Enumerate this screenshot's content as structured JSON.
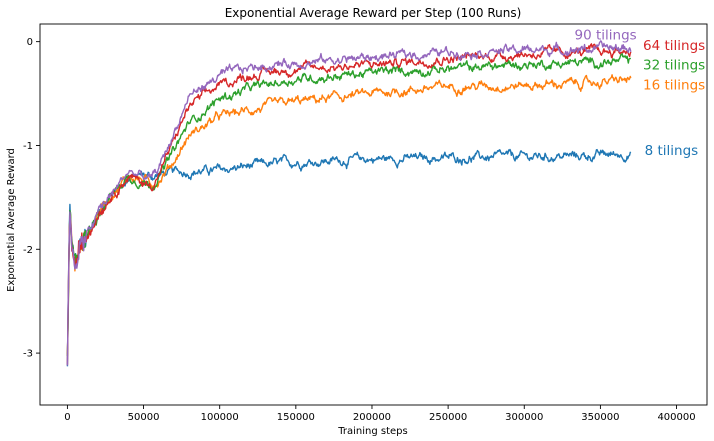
{
  "chart_data": {
    "type": "line",
    "title": "Exponential Average Reward per Step (100 Runs)",
    "xlabel": "Training steps",
    "ylabel": "Exponential Average Reward",
    "xlim": [
      -18000,
      420000
    ],
    "ylim": [
      -3.5,
      0.17
    ],
    "xticks": [
      0,
      50000,
      100000,
      150000,
      200000,
      250000,
      300000,
      350000,
      400000
    ],
    "yticks": [
      0,
      -1,
      -2,
      -3
    ],
    "grid": false,
    "legend": "none",
    "colors": {
      "8 tilings": "#1f77b4",
      "16 tilings": "#ff7f0e",
      "32 tilings": "#2ca02c",
      "64 tilings": "#d62728",
      "90 tilings": "#9467bd"
    },
    "series": [
      {
        "name": "8 tilings",
        "color": "#1f77b4",
        "x": [
          0,
          1500,
          3000,
          5000,
          8000,
          12000,
          20000,
          30000,
          40000,
          50000,
          55000,
          60000,
          70000,
          80000,
          100000,
          120000,
          150000,
          200000,
          250000,
          300000,
          340000,
          370000
        ],
        "values": [
          -3.1,
          -1.6,
          -2.0,
          -2.15,
          -2.0,
          -1.9,
          -1.65,
          -1.45,
          -1.32,
          -1.28,
          -1.3,
          -1.28,
          -1.26,
          -1.25,
          -1.24,
          -1.2,
          -1.16,
          -1.13,
          -1.12,
          -1.11,
          -1.1,
          -1.08
        ]
      },
      {
        "name": "16 tilings",
        "color": "#ff7f0e",
        "x": [
          0,
          1500,
          3000,
          5000,
          8000,
          12000,
          20000,
          30000,
          40000,
          50000,
          55000,
          60000,
          70000,
          80000,
          100000,
          120000,
          150000,
          200000,
          250000,
          300000,
          340000,
          370000
        ],
        "values": [
          -3.1,
          -1.6,
          -2.0,
          -2.15,
          -2.0,
          -1.9,
          -1.65,
          -1.45,
          -1.3,
          -1.33,
          -1.37,
          -1.33,
          -1.15,
          -0.9,
          -0.72,
          -0.66,
          -0.58,
          -0.5,
          -0.43,
          -0.42,
          -0.4,
          -0.37
        ]
      },
      {
        "name": "32 tilings",
        "color": "#2ca02c",
        "x": [
          0,
          1500,
          3000,
          5000,
          8000,
          12000,
          20000,
          30000,
          40000,
          50000,
          55000,
          60000,
          70000,
          80000,
          100000,
          120000,
          150000,
          200000,
          250000,
          300000,
          340000,
          370000
        ],
        "values": [
          -3.1,
          -1.6,
          -2.0,
          -2.15,
          -2.0,
          -1.9,
          -1.65,
          -1.45,
          -1.3,
          -1.35,
          -1.38,
          -1.3,
          -1.05,
          -0.78,
          -0.55,
          -0.45,
          -0.36,
          -0.3,
          -0.26,
          -0.22,
          -0.2,
          -0.19
        ]
      },
      {
        "name": "64 tilings",
        "color": "#d62728",
        "x": [
          0,
          1500,
          3000,
          5000,
          8000,
          12000,
          20000,
          30000,
          40000,
          50000,
          55000,
          60000,
          70000,
          80000,
          100000,
          120000,
          150000,
          200000,
          250000,
          300000,
          340000,
          370000
        ],
        "values": [
          -3.1,
          -1.6,
          -2.0,
          -2.15,
          -2.0,
          -1.9,
          -1.65,
          -1.45,
          -1.3,
          -1.36,
          -1.39,
          -1.28,
          -0.95,
          -0.62,
          -0.42,
          -0.32,
          -0.26,
          -0.22,
          -0.16,
          -0.12,
          -0.1,
          -0.09
        ]
      },
      {
        "name": "90 tilings",
        "color": "#9467bd",
        "x": [
          0,
          1500,
          3000,
          5000,
          8000,
          12000,
          20000,
          30000,
          40000,
          50000,
          55000,
          60000,
          70000,
          80000,
          100000,
          120000,
          150000,
          200000,
          250000,
          300000,
          340000,
          370000
        ],
        "values": [
          -3.1,
          -1.6,
          -2.0,
          -2.15,
          -2.0,
          -1.9,
          -1.65,
          -1.45,
          -1.25,
          -1.3,
          -1.33,
          -1.22,
          -0.88,
          -0.52,
          -0.33,
          -0.25,
          -0.2,
          -0.15,
          -0.1,
          -0.08,
          -0.07,
          -0.06
        ]
      }
    ],
    "annotations": [
      {
        "text": "90 tilings",
        "series": "90 tilings",
        "x": 333000,
        "y": 0.02
      },
      {
        "text": "64 tilings",
        "series": "64 tilings",
        "x": 378000,
        "y": -0.08
      },
      {
        "text": "32 tilings",
        "series": "32 tilings",
        "x": 378000,
        "y": -0.27
      },
      {
        "text": "16 tilings",
        "series": "16 tilings",
        "x": 378000,
        "y": -0.46
      },
      {
        "text": "8 tilings",
        "series": "8 tilings",
        "x": 379000,
        "y": -1.09
      }
    ]
  }
}
